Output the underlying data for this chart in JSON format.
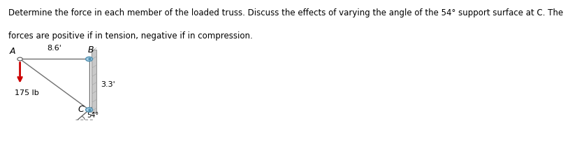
{
  "title_line1": "Determine the force in each member of the loaded truss. Discuss the effects of varying the angle of the 54° support surface at C. The",
  "title_line2": "forces are positive if in tension, negative if in compression.",
  "title_fontsize": 8.5,
  "bg_color": "#ffffff",
  "A": [
    0.06,
    0.62
  ],
  "B": [
    0.38,
    0.62
  ],
  "C": [
    0.38,
    0.25
  ],
  "label_A": "A",
  "label_B": "B",
  "label_C": "C",
  "dim_AB": "8.6'",
  "dim_BC": "3.3'",
  "dim_angle": "54°",
  "force_label": "175 lb",
  "force_color": "#cc0000",
  "member_color": "#707070",
  "pin_color": "#a8d0e8",
  "pin_edge_color": "#5090b0",
  "wall_color": "#c8c8c8",
  "wall_edge_color": "#999999",
  "arrow_color": "#cc0000"
}
